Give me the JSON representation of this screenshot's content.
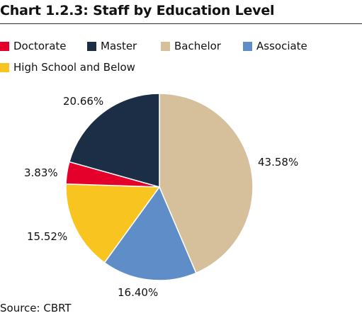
{
  "title": "Chart 1.2.3: Staff by Education Level",
  "source": "Source: CBRT",
  "chart_data": {
    "type": "pie",
    "title": "Chart 1.2.3: Staff by Education Level",
    "legend_position": "top",
    "slices": [
      {
        "name": "Bachelor",
        "value": 43.58,
        "label": "43.58%",
        "color": "#d6bf9b"
      },
      {
        "name": "Associate",
        "value": 16.4,
        "label": "16.40%",
        "color": "#5f8dc8"
      },
      {
        "name": "High School and Below",
        "value": 15.52,
        "label": "15.52%",
        "color": "#f8c520"
      },
      {
        "name": "Doctorate",
        "value": 3.83,
        "label": "3.83%",
        "color": "#e4002b"
      },
      {
        "name": "Master",
        "value": 20.66,
        "label": "20.66%",
        "color": "#1c2e45"
      }
    ],
    "legend": [
      {
        "name": "Doctorate",
        "color": "#e4002b"
      },
      {
        "name": "Master",
        "color": "#1c2e45"
      },
      {
        "name": "Bachelor",
        "color": "#d6bf9b"
      },
      {
        "name": "Associate",
        "color": "#5f8dc8"
      },
      {
        "name": "High School and Below",
        "color": "#f8c520"
      }
    ]
  }
}
